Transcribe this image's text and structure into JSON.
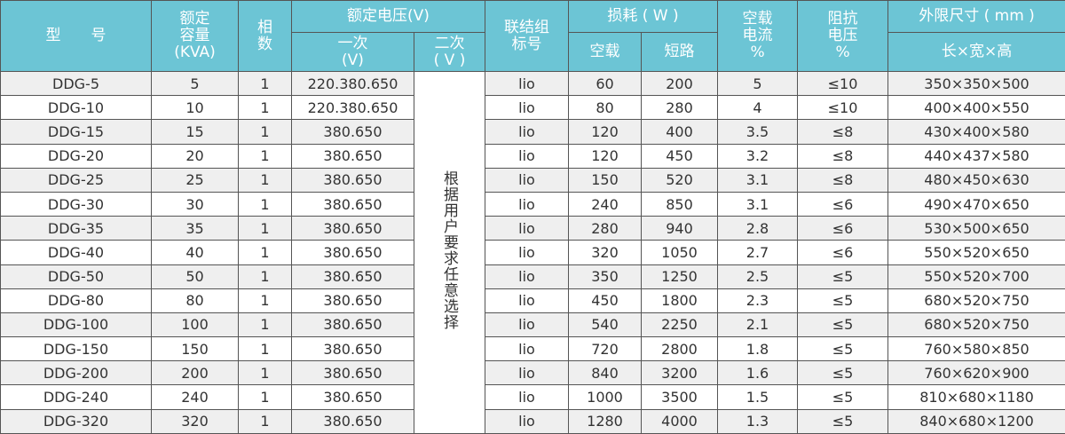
{
  "header": {
    "model": "型　　号",
    "capacity": "额定\n容量\n(KVA)",
    "phase": "相\n数",
    "rated_voltage": "额定电压(V)",
    "primary": "一次\n(V)",
    "secondary": "二次\n( V )",
    "connection": "联结组\n标号",
    "loss": "损耗 ( W )",
    "no_load_loss": "空载",
    "short_circuit_loss": "短路",
    "no_load_current": "空载\n电流\n%",
    "impedance_voltage": "阻抗\n电压\n%",
    "dimensions": "外限尺寸 ( mm )",
    "dimensions_sub": "长×宽×高"
  },
  "secondary_note": "根据用户要求任意选择",
  "colors": {
    "header_bg": "#6cc5d5",
    "row_alt": "#efefef"
  },
  "rows": [
    {
      "model": "DDG-5",
      "capacity": "5",
      "phase": "1",
      "primary": "220.380.650",
      "connection": "lio",
      "no_load": "60",
      "short": "200",
      "current": "5",
      "impedance": "≤10",
      "dims": "350×350×500"
    },
    {
      "model": "DDG-10",
      "capacity": "10",
      "phase": "1",
      "primary": "220.380.650",
      "connection": "lio",
      "no_load": "80",
      "short": "280",
      "current": "4",
      "impedance": "≤10",
      "dims": "400×400×550"
    },
    {
      "model": "DDG-15",
      "capacity": "15",
      "phase": "1",
      "primary": "380.650",
      "connection": "lio",
      "no_load": "120",
      "short": "400",
      "current": "3.5",
      "impedance": "≤8",
      "dims": "430×400×580"
    },
    {
      "model": "DDG-20",
      "capacity": "20",
      "phase": "1",
      "primary": "380.650",
      "connection": "lio",
      "no_load": "120",
      "short": "450",
      "current": "3.2",
      "impedance": "≤8",
      "dims": "440×437×580"
    },
    {
      "model": "DDG-25",
      "capacity": "25",
      "phase": "1",
      "primary": "380.650",
      "connection": "lio",
      "no_load": "150",
      "short": "520",
      "current": "3.1",
      "impedance": "≤8",
      "dims": "480×450×630"
    },
    {
      "model": "DDG-30",
      "capacity": "30",
      "phase": "1",
      "primary": "380.650",
      "connection": "lio",
      "no_load": "240",
      "short": "850",
      "current": "3.1",
      "impedance": "≤6",
      "dims": "490×470×650"
    },
    {
      "model": "DDG-35",
      "capacity": "35",
      "phase": "1",
      "primary": "380.650",
      "connection": "lio",
      "no_load": "280",
      "short": "940",
      "current": "2.8",
      "impedance": "≤6",
      "dims": "530×500×650"
    },
    {
      "model": "DDG-40",
      "capacity": "40",
      "phase": "1",
      "primary": "380.650",
      "connection": "lio",
      "no_load": "320",
      "short": "1050",
      "current": "2.7",
      "impedance": "≤6",
      "dims": "550×520×650"
    },
    {
      "model": "DDG-50",
      "capacity": "50",
      "phase": "1",
      "primary": "380.650",
      "connection": "lio",
      "no_load": "350",
      "short": "1250",
      "current": "2.5",
      "impedance": "≤5",
      "dims": "550×520×700"
    },
    {
      "model": "DDG-80",
      "capacity": "80",
      "phase": "1",
      "primary": "380.650",
      "connection": "lio",
      "no_load": "450",
      "short": "1800",
      "current": "2.3",
      "impedance": "≤5",
      "dims": "680×520×750"
    },
    {
      "model": "DDG-100",
      "capacity": "100",
      "phase": "1",
      "primary": "380.650",
      "connection": "lio",
      "no_load": "540",
      "short": "2250",
      "current": "2.1",
      "impedance": "≤5",
      "dims": "680×520×750"
    },
    {
      "model": "DDG-150",
      "capacity": "150",
      "phase": "1",
      "primary": "380.650",
      "connection": "lio",
      "no_load": "720",
      "short": "2800",
      "current": "1.8",
      "impedance": "≤5",
      "dims": "760×580×850"
    },
    {
      "model": "DDG-200",
      "capacity": "200",
      "phase": "1",
      "primary": "380.650",
      "connection": "lio",
      "no_load": "840",
      "short": "3200",
      "current": "1.6",
      "impedance": "≤5",
      "dims": "760×620×900"
    },
    {
      "model": "DDG-240",
      "capacity": "240",
      "phase": "1",
      "primary": "380.650",
      "connection": "lio",
      "no_load": "1000",
      "short": "3500",
      "current": "1.5",
      "impedance": "≤5",
      "dims": "810×680×1180"
    },
    {
      "model": "DDG-320",
      "capacity": "320",
      "phase": "1",
      "primary": "380.650",
      "connection": "lio",
      "no_load": "1280",
      "short": "4000",
      "current": "1.3",
      "impedance": "≤5",
      "dims": "840×680×1200"
    }
  ]
}
